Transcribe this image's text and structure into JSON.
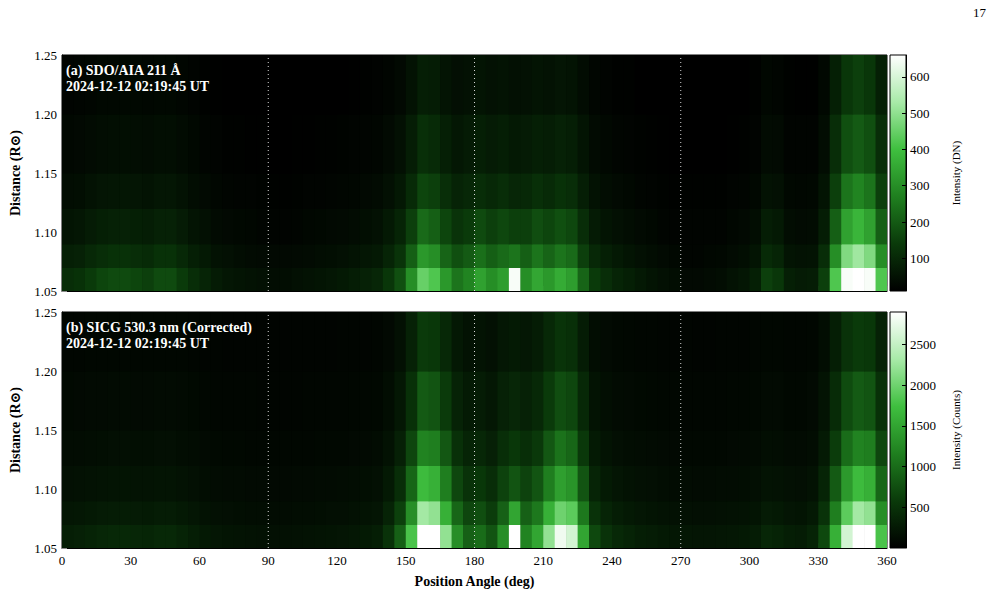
{
  "page_number": "17",
  "chart_data": [
    {
      "type": "heatmap",
      "title": "(a) SDO/AIA 211 Å",
      "subtitle": "2024-12-12 02:19:45 UT",
      "y_label": "Distance (R⊙)",
      "xlim": [
        0,
        360
      ],
      "ylim": [
        1.05,
        1.25
      ],
      "xticks": [
        0,
        30,
        60,
        90,
        120,
        150,
        180,
        210,
        240,
        270,
        300,
        330,
        360
      ],
      "yticks": [
        1.05,
        {
          "value": 1.1,
          "label": "1.10"
        },
        1.15,
        {
          "value": 1.2,
          "label": "1.20"
        },
        1.25
      ],
      "tick_labels": "y",
      "vlines": [
        90,
        180,
        270
      ],
      "x_edges": [
        0,
        5,
        10,
        15,
        20,
        25,
        30,
        35,
        40,
        45,
        50,
        55,
        60,
        65,
        70,
        75,
        80,
        85,
        90,
        95,
        100,
        105,
        110,
        115,
        120,
        125,
        130,
        135,
        140,
        145,
        150,
        155,
        160,
        165,
        170,
        175,
        180,
        185,
        190,
        195,
        200,
        205,
        210,
        215,
        220,
        225,
        230,
        235,
        240,
        245,
        250,
        255,
        260,
        265,
        270,
        275,
        280,
        285,
        290,
        295,
        300,
        305,
        310,
        315,
        320,
        325,
        330,
        335,
        340,
        345,
        350,
        355,
        360
      ],
      "y_edges": [
        1.05,
        1.07,
        1.09,
        1.12,
        1.15,
        1.2,
        1.25
      ],
      "cells": [
        [
          110,
          120,
          140,
          160,
          170,
          170,
          160,
          150,
          170,
          170,
          140,
          110,
          90,
          70,
          60,
          55,
          50,
          45,
          40,
          40,
          45,
          50,
          55,
          60,
          65,
          75,
          85,
          95,
          130,
          180,
          300,
          450,
          420,
          320,
          250,
          280,
          340,
          300,
          330,
          650,
          300,
          350,
          320,
          360,
          330,
          220,
          140,
          110,
          90,
          80,
          65,
          55,
          45,
          40,
          30,
          30,
          35,
          40,
          50,
          60,
          80,
          150,
          130,
          80,
          70,
          75,
          150,
          420,
          650,
          690,
          650,
          420
        ],
        [
          80,
          85,
          100,
          110,
          120,
          120,
          110,
          105,
          120,
          120,
          100,
          80,
          65,
          50,
          45,
          40,
          35,
          32,
          30,
          30,
          32,
          35,
          40,
          42,
          45,
          52,
          60,
          65,
          90,
          125,
          210,
          320,
          300,
          220,
          180,
          200,
          240,
          210,
          230,
          250,
          210,
          250,
          220,
          250,
          230,
          150,
          100,
          80,
          65,
          55,
          45,
          40,
          32,
          28,
          22,
          22,
          25,
          28,
          35,
          42,
          55,
          105,
          90,
          55,
          50,
          52,
          110,
          300,
          480,
          520,
          480,
          300
        ],
        [
          55,
          60,
          70,
          80,
          85,
          85,
          80,
          75,
          85,
          85,
          70,
          55,
          45,
          35,
          30,
          28,
          25,
          22,
          20,
          20,
          22,
          25,
          28,
          30,
          32,
          38,
          42,
          48,
          65,
          90,
          150,
          230,
          210,
          160,
          125,
          140,
          170,
          150,
          165,
          150,
          150,
          175,
          160,
          180,
          165,
          110,
          70,
          55,
          45,
          40,
          32,
          28,
          22,
          20,
          18,
          18,
          18,
          20,
          25,
          30,
          40,
          75,
          65,
          40,
          35,
          38,
          75,
          210,
          340,
          380,
          340,
          210
        ],
        [
          40,
          42,
          50,
          56,
          60,
          60,
          56,
          52,
          60,
          60,
          50,
          40,
          32,
          25,
          21,
          20,
          18,
          16,
          15,
          15,
          16,
          18,
          20,
          21,
          23,
          26,
          30,
          34,
          45,
          63,
          105,
          160,
          150,
          112,
          88,
          98,
          110,
          100,
          110,
          95,
          100,
          115,
          105,
          120,
          110,
          77,
          50,
          40,
          32,
          28,
          22,
          20,
          16,
          15,
          14,
          14,
          14,
          15,
          18,
          21,
          28,
          50,
          45,
          28,
          25,
          27,
          55,
          150,
          250,
          280,
          250,
          150
        ],
        [
          28,
          30,
          35,
          40,
          42,
          42,
          40,
          38,
          42,
          42,
          35,
          28,
          22,
          18,
          15,
          14,
          13,
          12,
          11,
          11,
          12,
          13,
          14,
          15,
          16,
          19,
          21,
          24,
          32,
          45,
          75,
          115,
          105,
          80,
          62,
          70,
          80,
          70,
          78,
          65,
          70,
          80,
          75,
          85,
          78,
          55,
          35,
          28,
          22,
          20,
          16,
          14,
          12,
          11,
          10,
          10,
          10,
          11,
          13,
          15,
          20,
          35,
          32,
          20,
          18,
          19,
          40,
          110,
          180,
          200,
          180,
          110
        ],
        [
          20,
          21,
          24,
          27,
          29,
          29,
          27,
          26,
          29,
          29,
          24,
          19,
          15,
          12,
          11,
          10,
          9,
          9,
          8,
          8,
          9,
          9,
          10,
          11,
          11,
          13,
          15,
          17,
          22,
          31,
          50,
          78,
          72,
          55,
          43,
          48,
          55,
          48,
          53,
          45,
          48,
          55,
          50,
          58,
          53,
          37,
          24,
          19,
          15,
          14,
          11,
          10,
          9,
          8,
          7,
          7,
          7,
          8,
          9,
          10,
          14,
          25,
          22,
          14,
          12,
          13,
          28,
          80,
          130,
          150,
          130,
          80
        ]
      ],
      "color_range": [
        10,
        660
      ],
      "color_ticks": [
        100,
        200,
        300,
        400,
        500,
        600
      ],
      "color_label": "Intensity (DN)"
    },
    {
      "type": "heatmap",
      "title": "(b) SICG 530.3 nm (Corrected)",
      "subtitle": "2024-12-12 02:19:45 UT",
      "x_label": "Position Angle (deg)",
      "y_label": "Distance (R⊙)",
      "xlim": [
        0,
        360
      ],
      "ylim": [
        1.05,
        1.25
      ],
      "xticks": [
        0,
        30,
        60,
        90,
        120,
        150,
        180,
        210,
        240,
        270,
        300,
        330,
        360
      ],
      "yticks": [
        1.05,
        {
          "value": 1.1,
          "label": "1.10"
        },
        1.15,
        {
          "value": 1.2,
          "label": "1.20"
        },
        1.25
      ],
      "vlines": [
        90,
        180,
        270
      ],
      "x_edges": [
        0,
        5,
        10,
        15,
        20,
        25,
        30,
        35,
        40,
        45,
        50,
        55,
        60,
        65,
        70,
        75,
        80,
        85,
        90,
        95,
        100,
        105,
        110,
        115,
        120,
        125,
        130,
        135,
        140,
        145,
        150,
        155,
        160,
        165,
        170,
        175,
        180,
        185,
        190,
        195,
        200,
        205,
        210,
        215,
        220,
        225,
        230,
        235,
        240,
        245,
        250,
        255,
        260,
        265,
        270,
        275,
        280,
        285,
        290,
        295,
        300,
        305,
        310,
        315,
        320,
        325,
        330,
        335,
        340,
        345,
        350,
        355,
        360
      ],
      "y_edges": [
        1.05,
        1.07,
        1.09,
        1.12,
        1.15,
        1.2,
        1.25
      ],
      "cells": [
        [
          300,
          320,
          350,
          380,
          400,
          400,
          380,
          370,
          400,
          400,
          350,
          300,
          250,
          220,
          200,
          190,
          180,
          170,
          160,
          160,
          170,
          180,
          190,
          200,
          210,
          230,
          260,
          300,
          500,
          900,
          1800,
          2900,
          2900,
          2200,
          1300,
          900,
          1000,
          800,
          1300,
          2900,
          1200,
          1500,
          2200,
          2800,
          2600,
          1500,
          700,
          500,
          400,
          350,
          300,
          280,
          250,
          230,
          220,
          210,
          210,
          220,
          230,
          250,
          280,
          380,
          350,
          300,
          280,
          350,
          700,
          1600,
          2600,
          2900,
          2900,
          1800
        ],
        [
          220,
          230,
          250,
          270,
          280,
          280,
          270,
          260,
          280,
          280,
          250,
          220,
          180,
          160,
          150,
          140,
          130,
          125,
          120,
          120,
          125,
          130,
          140,
          145,
          150,
          165,
          185,
          210,
          350,
          630,
          1300,
          2300,
          2200,
          1600,
          950,
          680,
          750,
          600,
          900,
          1500,
          900,
          1100,
          1600,
          2000,
          1900,
          1100,
          500,
          360,
          290,
          250,
          220,
          200,
          180,
          165,
          160,
          150,
          150,
          160,
          165,
          180,
          200,
          270,
          250,
          215,
          200,
          250,
          500,
          1150,
          1900,
          2300,
          2200,
          1300
        ],
        [
          160,
          170,
          180,
          195,
          200,
          200,
          195,
          190,
          200,
          200,
          180,
          160,
          130,
          115,
          110,
          105,
          100,
          95,
          90,
          90,
          95,
          100,
          105,
          110,
          115,
          125,
          140,
          160,
          250,
          450,
          950,
          1700,
          1600,
          1150,
          680,
          500,
          550,
          450,
          650,
          800,
          650,
          800,
          1150,
          1450,
          1350,
          800,
          360,
          260,
          210,
          180,
          160,
          145,
          130,
          120,
          115,
          110,
          110,
          115,
          120,
          130,
          145,
          195,
          180,
          155,
          145,
          180,
          360,
          850,
          1400,
          1700,
          1600,
          950
        ],
        [
          115,
          120,
          130,
          140,
          145,
          145,
          140,
          135,
          145,
          145,
          130,
          115,
          95,
          85,
          80,
          75,
          72,
          70,
          68,
          68,
          70,
          72,
          75,
          80,
          82,
          90,
          100,
          115,
          180,
          320,
          680,
          1200,
          1150,
          820,
          480,
          360,
          390,
          320,
          460,
          550,
          460,
          560,
          820,
          1050,
          950,
          560,
          260,
          190,
          150,
          130,
          115,
          105,
          95,
          88,
          84,
          80,
          80,
          84,
          88,
          95,
          105,
          140,
          130,
          110,
          105,
          130,
          260,
          600,
          1000,
          1200,
          1150,
          680
        ],
        [
          85,
          88,
          95,
          100,
          105,
          105,
          100,
          98,
          105,
          105,
          95,
          85,
          70,
          63,
          60,
          57,
          55,
          53,
          52,
          52,
          53,
          55,
          57,
          60,
          62,
          66,
          72,
          82,
          130,
          230,
          480,
          850,
          800,
          580,
          340,
          260,
          280,
          230,
          330,
          380,
          330,
          400,
          580,
          740,
          680,
          400,
          190,
          140,
          110,
          96,
          85,
          78,
          70,
          65,
          62,
          60,
          60,
          62,
          65,
          70,
          78,
          100,
          95,
          80,
          78,
          95,
          190,
          430,
          720,
          850,
          800,
          480
        ],
        [
          60,
          62,
          66,
          70,
          72,
          72,
          70,
          68,
          72,
          72,
          66,
          60,
          50,
          46,
          44,
          42,
          41,
          40,
          39,
          39,
          40,
          41,
          42,
          44,
          45,
          48,
          52,
          58,
          90,
          160,
          330,
          580,
          550,
          400,
          235,
          180,
          195,
          160,
          230,
          260,
          230,
          280,
          400,
          510,
          470,
          280,
          130,
          98,
          78,
          68,
          60,
          55,
          50,
          47,
          45,
          44,
          44,
          45,
          47,
          50,
          55,
          70,
          66,
          57,
          55,
          66,
          130,
          300,
          500,
          580,
          550,
          330
        ]
      ],
      "color_range": [
        0,
        2900
      ],
      "color_ticks": [
        500,
        1000,
        1500,
        2000,
        2500
      ],
      "color_label": "Intensity (Counts)"
    }
  ]
}
